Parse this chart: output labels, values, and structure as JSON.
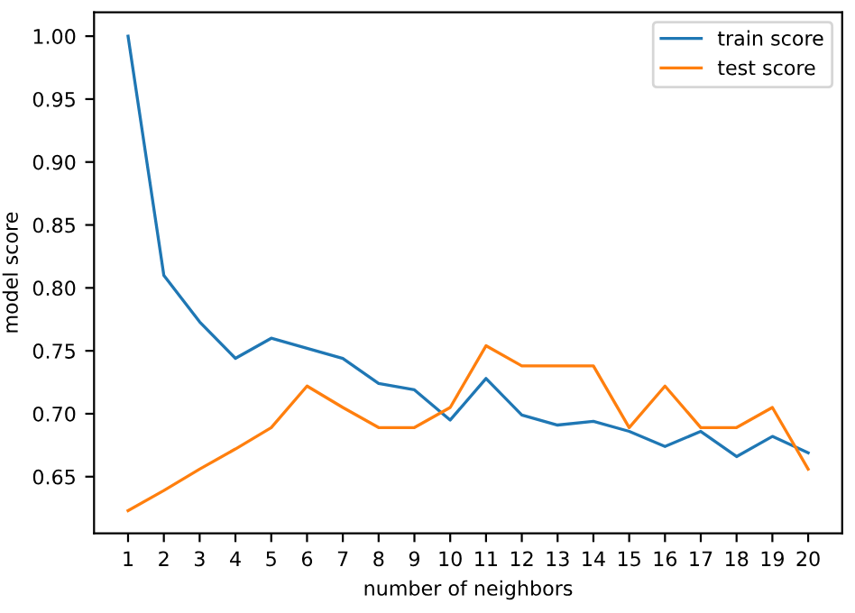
{
  "chart_data": {
    "type": "line",
    "xlabel": "number of neighbors",
    "ylabel": "model score",
    "x": [
      1,
      2,
      3,
      4,
      5,
      6,
      7,
      8,
      9,
      10,
      11,
      12,
      13,
      14,
      15,
      16,
      17,
      18,
      19,
      20
    ],
    "series": [
      {
        "name": "train score",
        "color": "#1f77b4",
        "values": [
          1.0,
          0.81,
          0.773,
          0.744,
          0.76,
          0.752,
          0.744,
          0.724,
          0.719,
          0.695,
          0.728,
          0.699,
          0.691,
          0.694,
          0.686,
          0.674,
          0.686,
          0.666,
          0.682,
          0.669
        ]
      },
      {
        "name": "test score",
        "color": "#ff7f0e",
        "values": [
          0.623,
          0.639,
          0.656,
          0.672,
          0.689,
          0.722,
          0.705,
          0.689,
          0.689,
          0.705,
          0.754,
          0.738,
          0.738,
          0.738,
          0.689,
          0.722,
          0.689,
          0.689,
          0.705,
          0.656
        ]
      }
    ],
    "xlim": [
      0.05,
      20.95
    ],
    "ylim": [
      0.605,
      1.019
    ],
    "xticks": [
      1,
      2,
      3,
      4,
      5,
      6,
      7,
      8,
      9,
      10,
      11,
      12,
      13,
      14,
      15,
      16,
      17,
      18,
      19,
      20
    ],
    "yticks": [
      {
        "value": 0.65,
        "label": "0.65"
      },
      {
        "value": 0.7,
        "label": "0.70"
      },
      {
        "value": 0.75,
        "label": "0.75"
      },
      {
        "value": 0.8,
        "label": "0.80"
      },
      {
        "value": 0.85,
        "label": "0.85"
      },
      {
        "value": 0.9,
        "label": "0.90"
      },
      {
        "value": 0.95,
        "label": "0.95"
      },
      {
        "value": 1.0,
        "label": "1.00"
      }
    ],
    "legend": "top right",
    "grid": false,
    "marker": "none",
    "line_style": "solid"
  }
}
